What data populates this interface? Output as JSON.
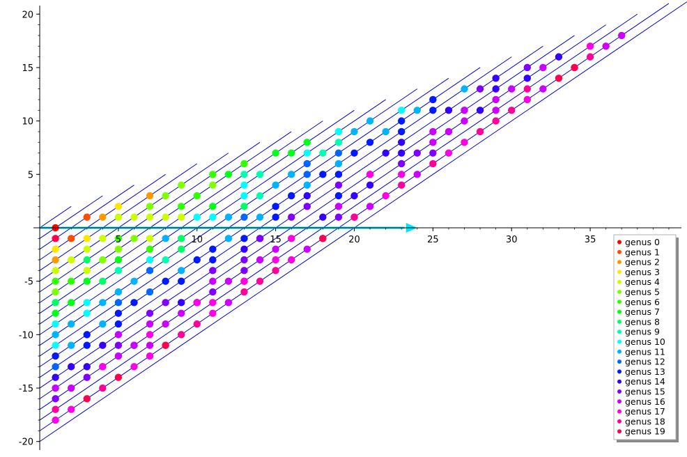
{
  "chart_data": {
    "type": "scatter",
    "xlim": [
      -0.4,
      40.8
    ],
    "ylim": [
      -20.8,
      20.8
    ],
    "x_ticks": [
      5,
      10,
      15,
      20,
      25,
      30,
      35
    ],
    "y_ticks": [
      -20,
      -15,
      -10,
      -5,
      5,
      10,
      15,
      20
    ],
    "grid": false,
    "legend_position": "bottom-right",
    "series": [
      {
        "name": "genus 0",
        "color": "#ff0000",
        "points": [
          [
            1,
            0
          ]
        ]
      },
      {
        "name": "genus 1",
        "color": "#ff4d00",
        "points": [
          [
            2,
            -1
          ],
          [
            3,
            1
          ]
        ]
      },
      {
        "name": "genus 2",
        "color": "#ff9900",
        "points": [
          [
            1,
            -3
          ],
          [
            4,
            1
          ],
          [
            7,
            3
          ]
        ]
      },
      {
        "name": "genus 3",
        "color": "#ffe600",
        "points": [
          [
            1,
            -2
          ],
          [
            3,
            -1
          ],
          [
            5,
            2
          ]
        ]
      },
      {
        "name": "genus 4",
        "color": "#ccff00",
        "points": [
          [
            1,
            -4
          ],
          [
            2,
            -3
          ],
          [
            3,
            -4
          ],
          [
            3,
            -2
          ],
          [
            4,
            -1
          ],
          [
            5,
            1
          ],
          [
            6,
            1
          ],
          [
            7,
            1
          ],
          [
            8,
            1
          ],
          [
            9,
            1
          ],
          [
            7,
            -1
          ]
        ]
      },
      {
        "name": "genus 5",
        "color": "#80ff00",
        "points": [
          [
            1,
            -6
          ],
          [
            4,
            -3
          ],
          [
            5,
            -2
          ],
          [
            6,
            -1
          ],
          [
            7,
            2
          ],
          [
            8,
            3
          ],
          [
            9,
            4
          ],
          [
            11,
            4
          ]
        ]
      },
      {
        "name": "genus 6",
        "color": "#33ff00",
        "points": [
          [
            1,
            -5
          ],
          [
            2,
            -5
          ],
          [
            5,
            -1
          ],
          [
            7,
            -2
          ],
          [
            9,
            2
          ],
          [
            10,
            3
          ],
          [
            11,
            5
          ],
          [
            13,
            6
          ]
        ]
      },
      {
        "name": "genus 7",
        "color": "#00ff19",
        "points": [
          [
            1,
            -8
          ],
          [
            2,
            -7
          ],
          [
            3,
            -5
          ],
          [
            5,
            -3
          ],
          [
            11,
            2
          ],
          [
            12,
            5
          ],
          [
            15,
            7
          ],
          [
            16,
            7
          ],
          [
            17,
            8
          ]
        ]
      },
      {
        "name": "genus 8",
        "color": "#00ff66",
        "points": [
          [
            1,
            -7
          ],
          [
            3,
            -3
          ],
          [
            4,
            -5
          ],
          [
            9,
            -1
          ],
          [
            9,
            -2
          ],
          [
            13,
            2
          ]
        ]
      },
      {
        "name": "genus 9",
        "color": "#00ffb3",
        "points": [
          [
            5,
            -4
          ],
          [
            8,
            -3
          ],
          [
            13,
            5
          ],
          [
            14,
            3
          ],
          [
            14,
            5
          ],
          [
            18,
            7
          ],
          [
            19,
            8
          ]
        ]
      },
      {
        "name": "genus 10",
        "color": "#00ffff",
        "points": [
          [
            1,
            -9
          ],
          [
            1,
            -11
          ],
          [
            3,
            -7
          ],
          [
            3,
            -8
          ],
          [
            7,
            -3
          ],
          [
            10,
            1
          ],
          [
            11,
            1
          ],
          [
            13,
            4
          ],
          [
            13,
            3
          ],
          [
            17,
            7
          ],
          [
            19,
            9
          ],
          [
            23,
            11
          ]
        ]
      },
      {
        "name": "genus 11",
        "color": "#00b3ff",
        "points": [
          [
            1,
            -10
          ],
          [
            2,
            -9
          ],
          [
            2,
            -11
          ],
          [
            4,
            -7
          ],
          [
            4,
            -9
          ],
          [
            5,
            -6
          ],
          [
            6,
            -5
          ],
          [
            8,
            -1
          ],
          [
            9,
            -4
          ],
          [
            12,
            -1
          ],
          [
            12,
            1
          ],
          [
            14,
            1
          ],
          [
            15,
            4
          ],
          [
            16,
            5
          ],
          [
            17,
            4
          ],
          [
            19,
            6
          ],
          [
            20,
            9
          ],
          [
            21,
            10
          ],
          [
            22,
            9
          ],
          [
            24,
            11
          ],
          [
            27,
            13
          ]
        ]
      },
      {
        "name": "genus 12",
        "color": "#0066ff",
        "points": [
          [
            1,
            -13
          ],
          [
            5,
            -7
          ],
          [
            7,
            -4
          ],
          [
            7,
            -6
          ],
          [
            13,
            1
          ],
          [
            17,
            5
          ],
          [
            17,
            6
          ],
          [
            19,
            7
          ]
        ]
      },
      {
        "name": "genus 13",
        "color": "#0019ff",
        "points": [
          [
            1,
            -12
          ],
          [
            3,
            -10
          ],
          [
            3,
            -11
          ],
          [
            5,
            -8
          ],
          [
            5,
            -9
          ],
          [
            6,
            -7
          ],
          [
            8,
            -5
          ],
          [
            9,
            -5
          ],
          [
            10,
            -3
          ],
          [
            11,
            -2
          ],
          [
            11,
            -3
          ],
          [
            13,
            -1
          ],
          [
            15,
            1
          ],
          [
            15,
            2
          ],
          [
            16,
            3
          ],
          [
            18,
            5
          ],
          [
            19,
            5
          ],
          [
            19,
            3
          ],
          [
            20,
            7
          ],
          [
            21,
            8
          ],
          [
            23,
            9
          ],
          [
            23,
            10
          ],
          [
            25,
            12
          ],
          [
            25,
            11
          ]
        ]
      },
      {
        "name": "genus 14",
        "color": "#3300ff",
        "points": [
          [
            1,
            -14
          ],
          [
            2,
            -13
          ],
          [
            3,
            -13
          ],
          [
            4,
            -11
          ],
          [
            6,
            -11
          ],
          [
            9,
            -7
          ],
          [
            13,
            -2
          ],
          [
            14,
            -1
          ],
          [
            17,
            3
          ],
          [
            18,
            1
          ],
          [
            20,
            3
          ],
          [
            21,
            4
          ],
          [
            22,
            7
          ],
          [
            23,
            7
          ],
          [
            23,
            8
          ],
          [
            26,
            11
          ],
          [
            28,
            11
          ],
          [
            29,
            13
          ],
          [
            29,
            14
          ],
          [
            31,
            14
          ],
          [
            33,
            16
          ]
        ]
      },
      {
        "name": "genus 15",
        "color": "#8000ff",
        "points": [
          [
            1,
            -16
          ],
          [
            3,
            -14
          ],
          [
            4,
            -13
          ],
          [
            5,
            -11
          ],
          [
            7,
            -8
          ],
          [
            8,
            -7
          ],
          [
            10,
            -7
          ],
          [
            11,
            -4
          ],
          [
            11,
            -6
          ],
          [
            13,
            -3
          ],
          [
            13,
            -4
          ],
          [
            14,
            -1
          ],
          [
            16,
            1
          ],
          [
            17,
            2
          ],
          [
            19,
            4
          ],
          [
            19,
            1
          ],
          [
            21,
            5
          ],
          [
            23,
            6
          ],
          [
            24,
            7
          ],
          [
            25,
            7
          ],
          [
            27,
            11
          ],
          [
            28,
            13
          ],
          [
            31,
            15
          ]
        ]
      },
      {
        "name": "genus 16",
        "color": "#cc00ff",
        "points": [
          [
            1,
            -15
          ],
          [
            2,
            -15
          ],
          [
            5,
            -10
          ],
          [
            5,
            -12
          ],
          [
            6,
            -11
          ],
          [
            7,
            -9
          ],
          [
            7,
            -11
          ],
          [
            8,
            -9
          ],
          [
            9,
            -8
          ],
          [
            10,
            -7
          ],
          [
            11,
            -5
          ],
          [
            12,
            -5
          ],
          [
            12,
            -7
          ],
          [
            13,
            -5
          ],
          [
            14,
            -3
          ],
          [
            15,
            -2
          ],
          [
            17,
            -2
          ],
          [
            19,
            2
          ],
          [
            21,
            2
          ],
          [
            24,
            5
          ],
          [
            25,
            8
          ],
          [
            25,
            9
          ],
          [
            26,
            9
          ],
          [
            27,
            10
          ],
          [
            27,
            11
          ],
          [
            29,
            11
          ],
          [
            29,
            12
          ],
          [
            30,
            13
          ],
          [
            32,
            13
          ],
          [
            32,
            15
          ],
          [
            34,
            15
          ],
          [
            36,
            17
          ],
          [
            37,
            18
          ]
        ]
      },
      {
        "name": "genus 17",
        "color": "#ff00e6",
        "points": [
          [
            1,
            -18
          ],
          [
            2,
            -17
          ],
          [
            4,
            -13
          ],
          [
            6,
            -13
          ],
          [
            7,
            -10
          ],
          [
            7,
            -12
          ],
          [
            10,
            -7
          ],
          [
            11,
            -7
          ],
          [
            11,
            -8
          ],
          [
            13,
            -5
          ],
          [
            15,
            -3
          ],
          [
            16,
            -1
          ],
          [
            16,
            -3
          ],
          [
            18,
            -1
          ],
          [
            20,
            1
          ],
          [
            21,
            5
          ],
          [
            22,
            3
          ],
          [
            23,
            5
          ],
          [
            26,
            7
          ],
          [
            27,
            8
          ],
          [
            31,
            12
          ],
          [
            35,
            17
          ]
        ]
      },
      {
        "name": "genus 18",
        "color": "#ff0099",
        "points": [
          [
            1,
            -17
          ],
          [
            4,
            -15
          ],
          [
            8,
            -11
          ],
          [
            9,
            -10
          ],
          [
            10,
            -9
          ],
          [
            13,
            -6
          ],
          [
            14,
            -5
          ],
          [
            15,
            -4
          ],
          [
            20,
            1
          ],
          [
            23,
            4
          ],
          [
            25,
            6
          ],
          [
            28,
            9
          ],
          [
            29,
            10
          ],
          [
            30,
            11
          ],
          [
            31,
            13
          ],
          [
            35,
            16
          ]
        ]
      },
      {
        "name": "genus 19",
        "color": "#ff004d",
        "points": [
          [
            1,
            -1
          ],
          [
            3,
            -16
          ],
          [
            5,
            -14
          ],
          [
            8,
            -11
          ],
          [
            18,
            -1
          ],
          [
            33,
            14
          ],
          [
            34,
            15
          ]
        ]
      }
    ]
  }
}
